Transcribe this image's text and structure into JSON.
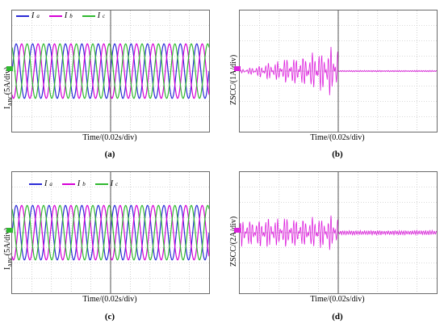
{
  "colors": {
    "Ia": "#2b2bd6",
    "Ib": "#d600d6",
    "Ic": "#2fb82f",
    "zscc": "#dd22dd"
  },
  "panels": {
    "a": {
      "caption": "(a)",
      "ylabel_main": "I",
      "ylabel_sub": "ABC",
      "ylabel_rest": "(5A/div)",
      "xlabel": "Time/(0.02s/div)"
    },
    "b": {
      "caption": "(b)",
      "ylabel": "ZSCC/(1A/div)",
      "xlabel": "Time/(0.02s/div)"
    },
    "c": {
      "caption": "(c)",
      "ylabel_main": "I",
      "ylabel_sub": "ABC",
      "ylabel_rest": "(5A/div)",
      "xlabel": "Time/(0.02s/div)"
    },
    "d": {
      "caption": "(d)",
      "ylabel": "ZSCC/(2A/div)",
      "xlabel": "Time/(0.02s/div)"
    }
  },
  "legend": [
    {
      "name": "I",
      "sub": "a",
      "color": "#2b2bd6"
    },
    {
      "name": "I",
      "sub": "b",
      "color": "#d600d6"
    },
    {
      "name": "I",
      "sub": "c",
      "color": "#2fb82f"
    }
  ],
  "chart_data": [
    {
      "type": "line",
      "panel": "a",
      "x_unit": "s",
      "grid_divisions": [
        10,
        8
      ],
      "series": [
        {
          "name": "Ia",
          "amplitude_div": 1.8,
          "phase_deg": 0
        },
        {
          "name": "Ib",
          "amplitude_div": 1.8,
          "phase_deg": -120
        },
        {
          "name": "Ic",
          "amplitude_div": 1.8,
          "phase_deg": 120
        }
      ],
      "cycles": 12,
      "event_division": 5
    },
    {
      "type": "line",
      "panel": "b",
      "grid_divisions": [
        10,
        8
      ],
      "envelope_div": [
        0.1,
        1.8
      ],
      "after_event_div": 0.05,
      "event_division": 5
    },
    {
      "type": "line",
      "panel": "c",
      "grid_divisions": [
        10,
        8
      ],
      "series": [
        {
          "name": "Ia",
          "amplitude_div": 1.8,
          "phase_deg": 0
        },
        {
          "name": "Ib",
          "amplitude_div": 1.8,
          "phase_deg": -120
        },
        {
          "name": "Ic",
          "amplitude_div": 1.8,
          "phase_deg": 120
        }
      ],
      "cycles": 12,
      "event_division": 5
    },
    {
      "type": "line",
      "panel": "d",
      "grid_divisions": [
        10,
        8
      ],
      "envelope_div": [
        1.0,
        1.2
      ],
      "after_event_div": 0.15,
      "event_division": 5
    }
  ]
}
